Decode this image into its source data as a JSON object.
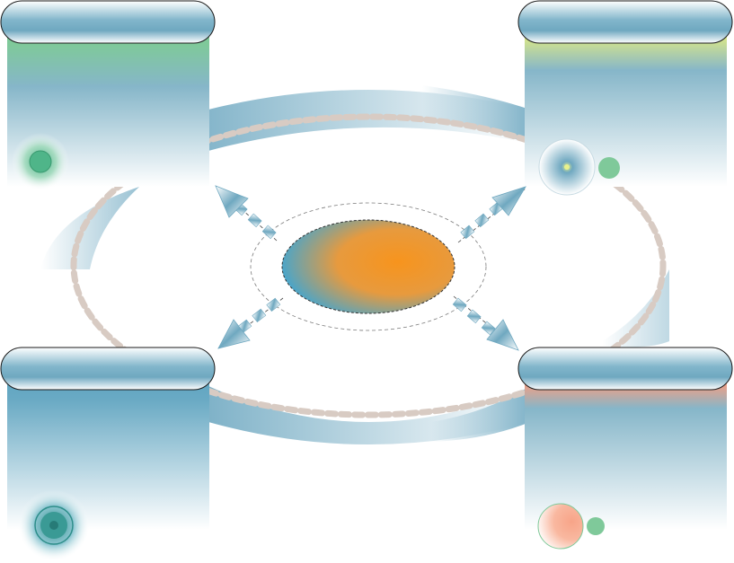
{
  "diagram": {
    "type": "cycle-with-four-panels",
    "center": {
      "label": "",
      "colors": [
        "#3ea6d4",
        "#f7941d"
      ]
    },
    "panels": [
      {
        "id": "top-left",
        "title": "",
        "accent": "#7fc99a",
        "icon": "dot-icon"
      },
      {
        "id": "top-right",
        "title": "",
        "accent": "#d6e58a",
        "icon": "bulb-icon"
      },
      {
        "id": "bottom-left",
        "title": "",
        "accent": "#5aa3c0",
        "icon": "ring-icon"
      },
      {
        "id": "bottom-right",
        "title": "",
        "accent": "#ee9f86",
        "icon": "circle-icon"
      }
    ],
    "colors": {
      "pill": "#7fb2c8",
      "panel": "#84b8cc",
      "ring_dash": "#d8cbc3",
      "green": "#4fb589",
      "peach": "#f7a488"
    }
  }
}
